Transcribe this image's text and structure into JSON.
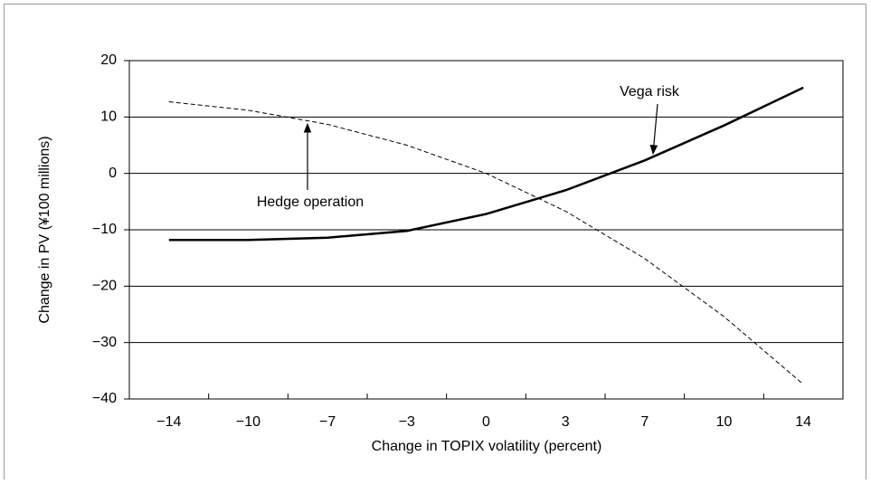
{
  "chart_data": {
    "type": "line",
    "x_label": "Change in TOPIX volatility (percent)",
    "y_label": "Change in PV (¥100 millions)",
    "categories": [
      "−14",
      "−10",
      "−7",
      "−3",
      "0",
      "3",
      "7",
      "10",
      "14"
    ],
    "series": [
      {
        "name": "Vega risk",
        "color": "#000000",
        "style": "solid",
        "values": [
          -11.8,
          -11.8,
          -11.4,
          -10.2,
          -7.2,
          -3,
          2.3,
          8.5,
          15.2
        ]
      },
      {
        "name": "Hedge operation",
        "color": "#000000",
        "style": "dashed",
        "values": [
          12.7,
          11.2,
          8.7,
          5,
          0,
          -6.7,
          -15.1,
          -25.4,
          -37.4
        ]
      }
    ],
    "ylim": [
      -40,
      20
    ],
    "yticks": [
      {
        "value": -40,
        "label": "−40"
      },
      {
        "value": -30,
        "label": "−30"
      },
      {
        "value": -20,
        "label": "−20"
      },
      {
        "value": -10,
        "label": "−10"
      },
      0,
      10,
      20
    ],
    "grid": true
  }
}
